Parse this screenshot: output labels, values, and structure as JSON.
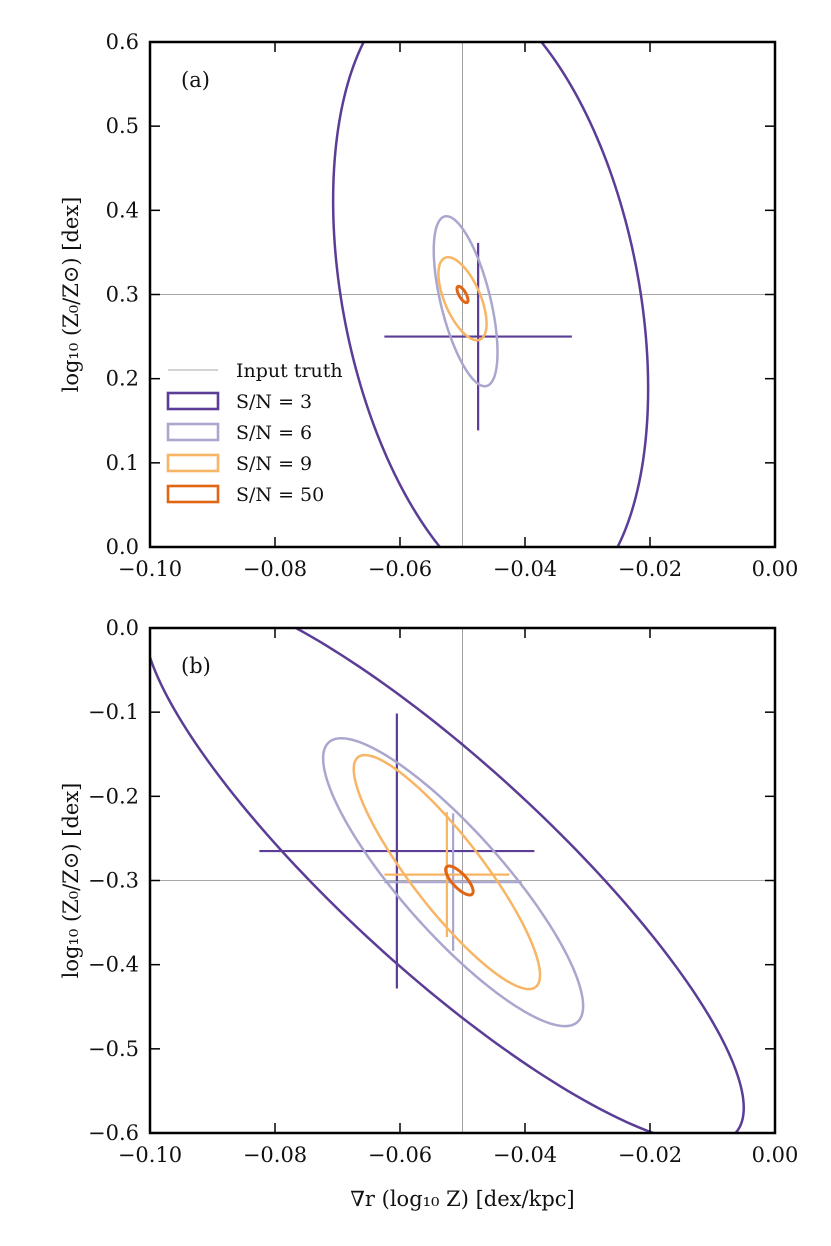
{
  "colors": {
    "sn3": "#5b3c96",
    "sn6": "#aaa7cf",
    "sn9": "#f7b565",
    "sn50": "#e06616",
    "truth": "#8a8a8a"
  },
  "chart_data": [
    {
      "type": "contour",
      "panel_label": "(a)",
      "xlim": [
        -0.1,
        0.0
      ],
      "ylim": [
        0.0,
        0.6
      ],
      "xticks": [
        -0.1,
        -0.08,
        -0.06,
        -0.04,
        -0.02,
        0.0
      ],
      "xtick_labels": [
        "−0.10",
        "−0.08",
        "−0.06",
        "−0.04",
        "−0.02",
        "0.00"
      ],
      "yticks": [
        0.0,
        0.1,
        0.2,
        0.3,
        0.4,
        0.5,
        0.6
      ],
      "ytick_labels": [
        "0.0",
        "0.1",
        "0.2",
        "0.3",
        "0.4",
        "0.5",
        "0.6"
      ],
      "ylabel": "log₁₀ (Z₀/Z⊙) [dex]",
      "xlabel": "",
      "truth": {
        "x": -0.05,
        "y": 0.3
      },
      "legend": [
        {
          "label": "Input truth",
          "key": "truth",
          "style": "line"
        },
        {
          "label": "S/N = 3",
          "key": "sn3",
          "style": "box"
        },
        {
          "label": "S/N = 6",
          "key": "sn6",
          "style": "box"
        },
        {
          "label": "S/N = 9",
          "key": "sn9",
          "style": "box"
        },
        {
          "label": "S/N = 50",
          "key": "sn50",
          "style": "box"
        }
      ],
      "series": [
        {
          "name": "S/N = 3",
          "key": "sn3",
          "center": [
            -0.0455,
            0.3
          ],
          "a": 0.0252,
          "b": 0.372,
          "rho": -0.3,
          "cross": [
            -0.0475,
            0.25
          ],
          "cross_size": 0.015
        },
        {
          "name": "S/N = 6",
          "key": "sn6",
          "center": [
            -0.0495,
            0.292
          ],
          "a": 0.0051,
          "b": 0.101,
          "rho": -0.6,
          "cross": null
        },
        {
          "name": "S/N = 9",
          "key": "sn9",
          "center": [
            -0.05,
            0.295
          ],
          "a": 0.00385,
          "b": 0.0493,
          "rho": -0.6,
          "cross": null
        },
        {
          "name": "S/N = 50",
          "key": "sn50",
          "center": [
            -0.05,
            0.3
          ],
          "a": 0.00088,
          "b": 0.0097,
          "rho": -0.7,
          "cross": null
        }
      ]
    },
    {
      "type": "contour",
      "panel_label": "(b)",
      "xlim": [
        -0.1,
        0.0
      ],
      "ylim": [
        -0.6,
        0.0
      ],
      "xticks": [
        -0.1,
        -0.08,
        -0.06,
        -0.04,
        -0.02,
        0.0
      ],
      "xtick_labels": [
        "−0.10",
        "−0.08",
        "−0.06",
        "−0.04",
        "−0.02",
        "0.00"
      ],
      "yticks": [
        0.0,
        -0.1,
        -0.2,
        -0.3,
        -0.4,
        -0.5,
        -0.6
      ],
      "ytick_labels": [
        "0.0",
        "−0.1",
        "−0.2",
        "−0.3",
        "−0.4",
        "−0.5",
        "−0.6"
      ],
      "ylabel": "log₁₀ (Z₀/Z⊙) [dex]",
      "xlabel": "∇r (log₁₀ Z) [dex/kpc]",
      "truth": {
        "x": -0.05,
        "y": -0.3
      },
      "series": [
        {
          "name": "S/N = 3",
          "key": "sn3",
          "center": [
            -0.053,
            -0.283
          ],
          "a": 0.048,
          "b": 0.33,
          "rho": -0.87,
          "cross": [
            -0.0605,
            -0.265
          ],
          "cross_size": 0.022
        },
        {
          "name": "S/N = 6",
          "key": "sn6",
          "center": [
            -0.0515,
            -0.302
          ],
          "a": 0.0208,
          "b": 0.171,
          "rho": -0.86,
          "cross": [
            -0.0515,
            -0.302
          ],
          "cross_size": 0.011
        },
        {
          "name": "S/N = 9",
          "key": "sn9",
          "center": [
            -0.0525,
            -0.29
          ],
          "a": 0.0149,
          "b": 0.139,
          "rho": -0.88,
          "cross": [
            -0.0525,
            -0.293
          ],
          "cross_size": 0.01
        },
        {
          "name": "S/N = 50",
          "key": "sn50",
          "center": [
            -0.0505,
            -0.3
          ],
          "a": 0.0022,
          "b": 0.0172,
          "rho": -0.75,
          "cross": null
        }
      ]
    }
  ]
}
